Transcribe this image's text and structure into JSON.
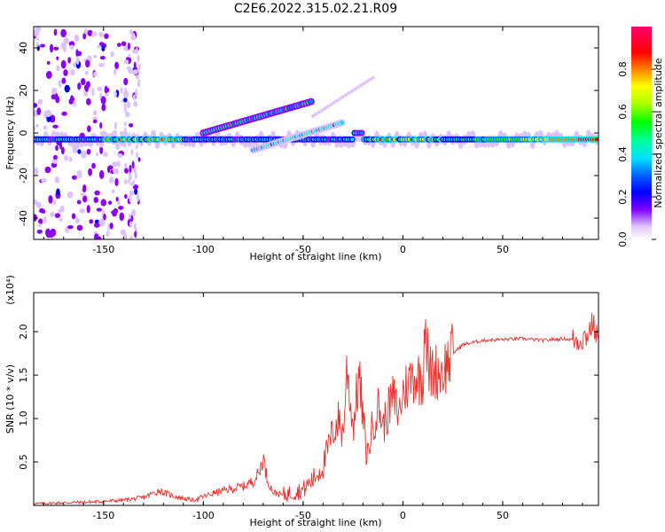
{
  "title": "C2E6.2022.315.02.21.R09",
  "colors": {
    "snr_line": "#e8302c",
    "frame": "#000000",
    "background": "#ffffff"
  },
  "chart_data": [
    {
      "type": "heatmap",
      "xlabel": "Height of straight line (km)",
      "ylabel": "Frequency (Hz)",
      "xlim": [
        -185,
        98
      ],
      "ylim": [
        -50,
        50
      ],
      "x_ticks": [
        -150,
        -100,
        -50,
        0,
        50
      ],
      "y_ticks": [
        -40,
        -20,
        0,
        20,
        40
      ],
      "colorbar": {
        "label": "Normalized spectral amplitude",
        "range": [
          0,
          1
        ],
        "ticks": [
          0.0,
          0.2,
          0.4,
          0.6,
          0.8
        ],
        "colormap": [
          "#ffffff",
          "#d8b8f8",
          "#7a00ff",
          "#0000ff",
          "#00ffff",
          "#00ff00",
          "#ffff00",
          "#ff8000",
          "#ff0000",
          "#ff0080"
        ]
      },
      "features": [
        {
          "name": "main band",
          "x_range": [
            -185,
            98
          ],
          "frequency": -3
        },
        {
          "name": "rising trace",
          "x_range": [
            -100,
            -45
          ],
          "frequency_range": [
            0,
            15
          ]
        },
        {
          "name": "lower trace",
          "x_range": [
            -75,
            -30
          ],
          "frequency_range": [
            -8,
            5
          ]
        }
      ]
    },
    {
      "type": "line",
      "xlabel": "Height of straight line (km)",
      "ylabel": "SNR (10 * v/v)",
      "y_multiplier": "(x10⁴)",
      "xlim": [
        -185,
        98
      ],
      "ylim": [
        0,
        2.45
      ],
      "x_ticks": [
        -150,
        -100,
        -50,
        0,
        50
      ],
      "y_ticks": [
        0.5,
        1.0,
        1.5,
        2.0
      ],
      "y_tick_labels": [
        "0.5",
        "1.0",
        "1.5",
        "2.0"
      ],
      "series": [
        {
          "x": [
            -185,
            -170,
            -155,
            -140,
            -130,
            -122,
            -118,
            -112,
            -105,
            -100,
            -95,
            -88,
            -80,
            -75,
            -72,
            -70,
            -68,
            -65,
            -60,
            -55,
            -50,
            -45,
            -40,
            -37,
            -35,
            -32,
            -30,
            -28,
            -25,
            -22,
            -20,
            -18,
            -15,
            -12,
            -10,
            -8,
            -5,
            -2,
            0,
            5,
            10,
            11,
            13,
            15,
            20,
            25,
            30,
            40,
            50,
            60,
            70,
            80,
            88,
            92,
            95,
            98
          ],
          "y": [
            0.02,
            0.03,
            0.04,
            0.06,
            0.09,
            0.17,
            0.13,
            0.09,
            0.06,
            0.1,
            0.14,
            0.18,
            0.22,
            0.28,
            0.38,
            0.56,
            0.3,
            0.15,
            0.12,
            0.15,
            0.18,
            0.3,
            0.45,
            0.7,
            0.85,
            1.0,
            0.8,
            1.6,
            0.9,
            1.5,
            1.0,
            0.55,
            0.95,
            1.15,
            0.9,
            1.05,
            1.25,
            1.05,
            1.3,
            1.5,
            1.45,
            2.25,
            1.5,
            1.55,
            1.55,
            1.75,
            1.85,
            1.9,
            1.91,
            1.92,
            1.9,
            1.92,
            1.9,
            1.95,
            2.1,
            1.9
          ]
        }
      ]
    }
  ]
}
